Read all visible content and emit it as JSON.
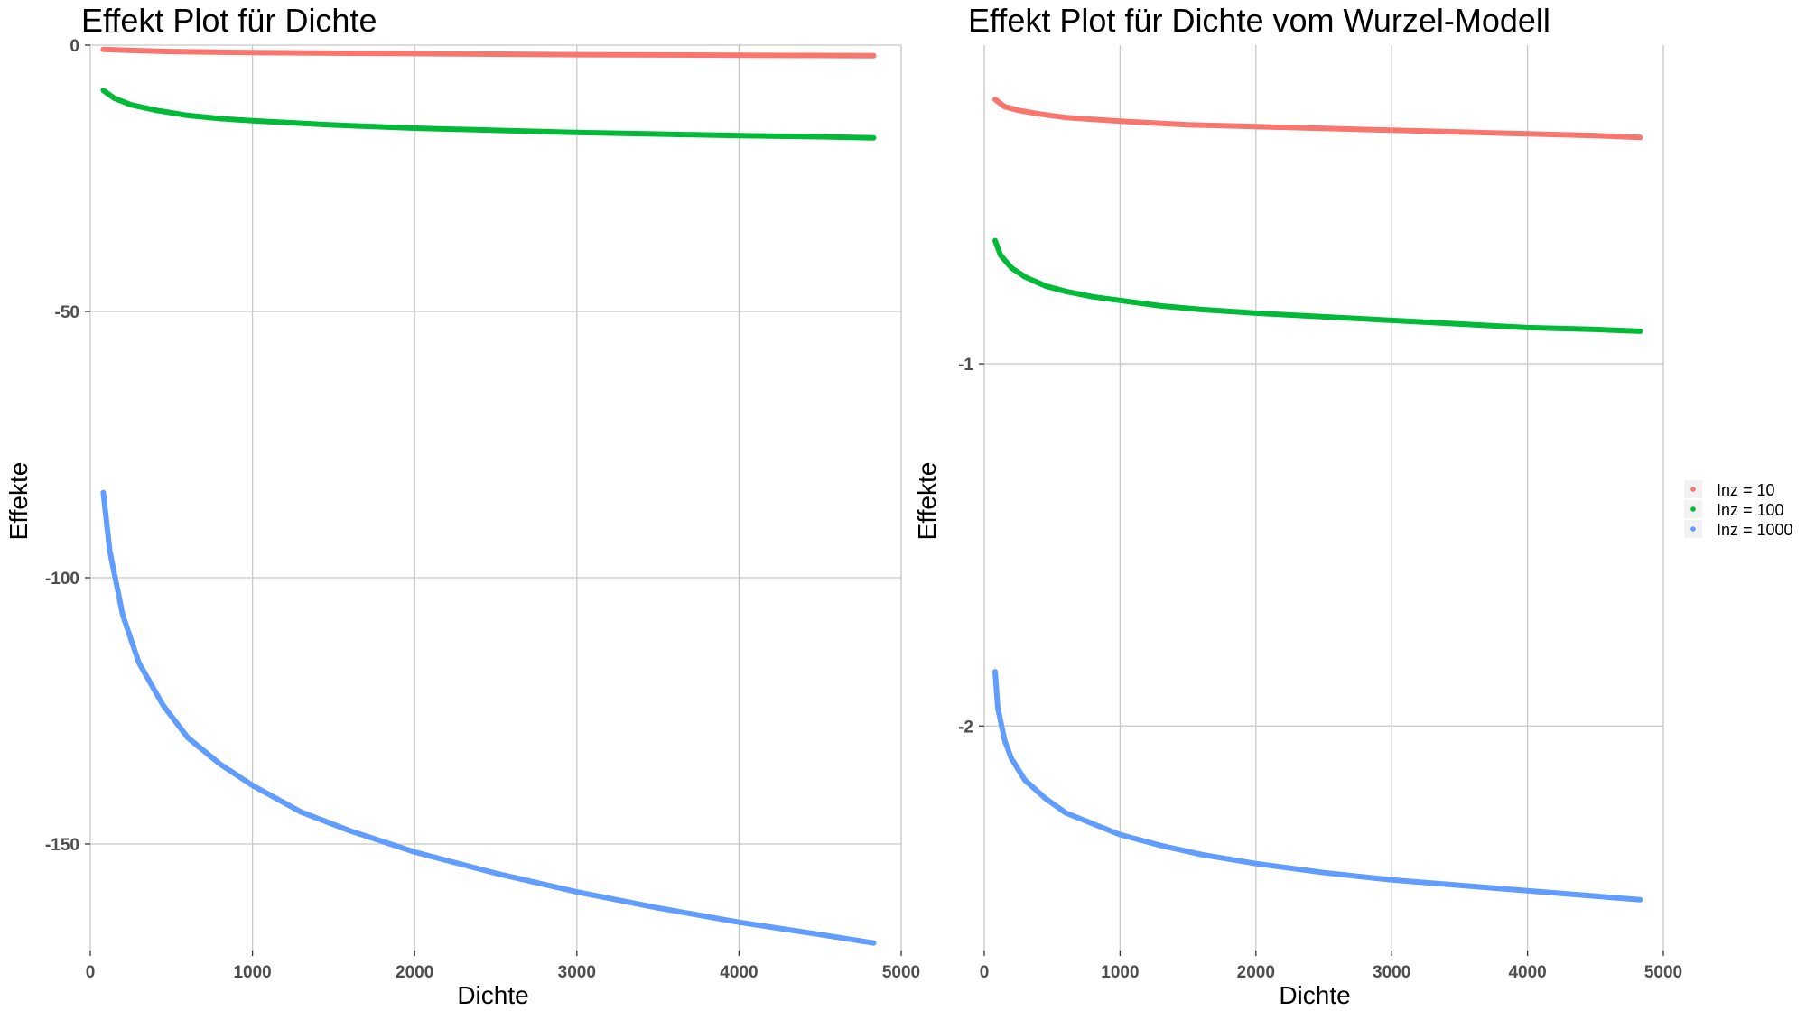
{
  "chart_data": [
    {
      "type": "line",
      "title": "Effekt Plot für Dichte",
      "xlabel": "Dichte",
      "ylabel": "Effekte",
      "xlim": [
        0,
        5000
      ],
      "ylim": [
        -170,
        0
      ],
      "xticks": [
        0,
        1000,
        2000,
        3000,
        4000,
        5000
      ],
      "yticks": [
        0,
        -50,
        -100,
        -150
      ],
      "xticklabels": [
        "0",
        "1000",
        "2000",
        "3000",
        "4000",
        "5000"
      ],
      "yticklabels": [
        "0",
        "-50",
        "-100",
        "-150"
      ],
      "grid": true,
      "series": [
        {
          "name": "Inz = 10",
          "color": "#F8766D",
          "x": [
            80,
            250,
            500,
            1000,
            1500,
            2000,
            2500,
            3000,
            3500,
            4000,
            4500,
            4830
          ],
          "y": [
            -0.8,
            -1.0,
            -1.2,
            -1.4,
            -1.5,
            -1.6,
            -1.7,
            -1.8,
            -1.85,
            -1.9,
            -1.95,
            -2.0
          ]
        },
        {
          "name": "Inz = 100",
          "color": "#00BA38",
          "x": [
            80,
            150,
            250,
            400,
            600,
            800,
            1000,
            1500,
            2000,
            2500,
            3000,
            3500,
            4000,
            4500,
            4830
          ],
          "y": [
            -8.5,
            -10.0,
            -11.2,
            -12.2,
            -13.2,
            -13.8,
            -14.2,
            -15.0,
            -15.6,
            -16.0,
            -16.4,
            -16.7,
            -17.0,
            -17.2,
            -17.4
          ]
        },
        {
          "name": "Inz = 1000",
          "color": "#619CFF",
          "x": [
            80,
            120,
            200,
            300,
            450,
            600,
            800,
            1000,
            1300,
            1600,
            2000,
            2500,
            3000,
            3500,
            4000,
            4500,
            4830
          ],
          "y": [
            -84,
            -95,
            -107,
            -116,
            -124,
            -130,
            -135,
            -139,
            -144,
            -147.5,
            -151.5,
            -155.5,
            -159,
            -162,
            -164.7,
            -167,
            -168.6
          ]
        }
      ]
    },
    {
      "type": "line",
      "title": "Effekt Plot für Dichte vom Wurzel-Modell",
      "xlabel": "Dichte",
      "ylabel": "Effekte",
      "xlim": [
        0,
        5000
      ],
      "ylim": [
        -2.62,
        -0.12
      ],
      "xticks": [
        0,
        1000,
        2000,
        3000,
        4000,
        5000
      ],
      "yticks": [
        -1,
        -2
      ],
      "xticklabels": [
        "0",
        "1000",
        "2000",
        "3000",
        "4000",
        "5000"
      ],
      "yticklabels": [
        "-1",
        "-2"
      ],
      "grid": true,
      "legend": "right",
      "series": [
        {
          "name": "Inz = 10",
          "color": "#F8766D",
          "x": [
            80,
            150,
            250,
            400,
            600,
            800,
            1000,
            1500,
            2000,
            2500,
            3000,
            3500,
            4000,
            4500,
            4830
          ],
          "y": [
            -0.27,
            -0.29,
            -0.3,
            -0.31,
            -0.32,
            -0.325,
            -0.33,
            -0.34,
            -0.345,
            -0.35,
            -0.355,
            -0.36,
            -0.365,
            -0.37,
            -0.375
          ]
        },
        {
          "name": "Inz = 100",
          "color": "#00BA38",
          "x": [
            80,
            120,
            200,
            300,
            450,
            600,
            800,
            1000,
            1300,
            1600,
            2000,
            2500,
            3000,
            3500,
            4000,
            4500,
            4830
          ],
          "y": [
            -0.66,
            -0.7,
            -0.735,
            -0.76,
            -0.785,
            -0.8,
            -0.815,
            -0.825,
            -0.84,
            -0.85,
            -0.86,
            -0.87,
            -0.88,
            -0.89,
            -0.9,
            -0.905,
            -0.91
          ]
        },
        {
          "name": "Inz = 1000",
          "color": "#619CFF",
          "x": [
            80,
            100,
            150,
            200,
            300,
            450,
            600,
            800,
            1000,
            1300,
            1600,
            2000,
            2500,
            3000,
            3500,
            4000,
            4500,
            4830
          ],
          "y": [
            -1.85,
            -1.95,
            -2.04,
            -2.09,
            -2.15,
            -2.2,
            -2.24,
            -2.27,
            -2.3,
            -2.33,
            -2.355,
            -2.38,
            -2.405,
            -2.425,
            -2.44,
            -2.455,
            -2.47,
            -2.48
          ]
        }
      ]
    }
  ]
}
